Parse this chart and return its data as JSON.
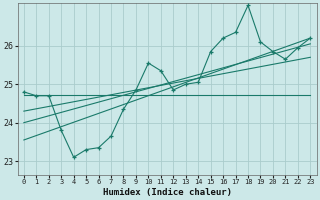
{
  "xlabel": "Humidex (Indice chaleur)",
  "background_color": "#cce8e8",
  "grid_color": "#aacccc",
  "line_color": "#1a7a6a",
  "xlim": [
    -0.5,
    23.5
  ],
  "ylim": [
    22.65,
    27.1
  ],
  "yticks": [
    23,
    24,
    25,
    26
  ],
  "xticks": [
    0,
    1,
    2,
    3,
    4,
    5,
    6,
    7,
    8,
    9,
    10,
    11,
    12,
    13,
    14,
    15,
    16,
    17,
    18,
    19,
    20,
    21,
    22,
    23
  ],
  "series1_x": [
    0,
    1,
    2,
    3,
    4,
    5,
    6,
    7,
    8,
    9,
    10,
    11,
    12,
    13,
    14,
    15,
    16,
    17,
    18,
    19,
    20,
    21,
    22,
    23
  ],
  "series1_y": [
    24.8,
    24.7,
    24.7,
    23.8,
    23.1,
    23.3,
    23.35,
    23.65,
    24.35,
    24.85,
    25.55,
    25.35,
    24.85,
    25.0,
    25.05,
    25.85,
    26.2,
    26.35,
    27.05,
    26.1,
    25.85,
    25.65,
    25.95,
    26.2
  ],
  "line1_x": [
    0,
    23
  ],
  "line1_y": [
    24.72,
    24.72
  ],
  "line2_x": [
    0,
    23
  ],
  "line2_y": [
    23.55,
    26.2
  ],
  "line3_x": [
    0,
    23
  ],
  "line3_y": [
    24.0,
    26.05
  ],
  "line4_x": [
    0,
    23
  ],
  "line4_y": [
    24.3,
    25.7
  ]
}
